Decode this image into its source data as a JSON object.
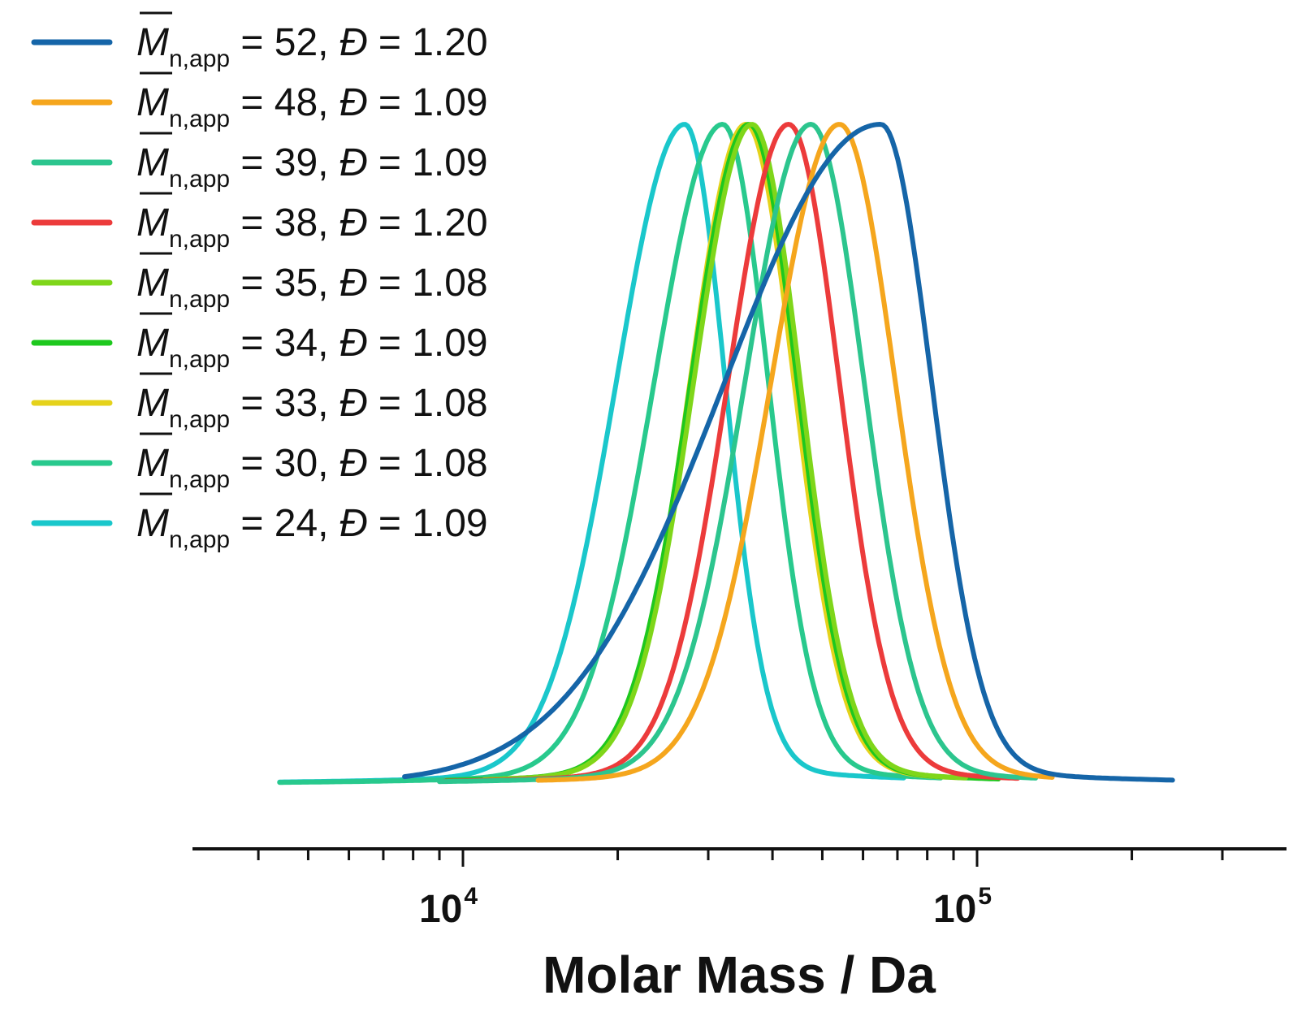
{
  "chart_data": {
    "type": "line",
    "xlabel": "Molar Mass / Da",
    "ylabel": "",
    "title": "",
    "xscale": "log",
    "xlim": [
      4000,
      400000
    ],
    "grid": false,
    "legend_position": "top-left",
    "x_ticks": [
      {
        "base": "10",
        "exp": "4"
      },
      {
        "base": "10",
        "exp": "5"
      }
    ],
    "series": [
      {
        "Mn": "52",
        "D": "1.20",
        "color": "#1565A8",
        "peak": 65000,
        "sigma_left": 0.62,
        "sigma_right": 0.2,
        "x_start": 7700,
        "x_end": 240000
      },
      {
        "Mn": "48",
        "D": "1.09",
        "color": "#F5A61D",
        "peak": 54000,
        "sigma_left": 0.27,
        "sigma_right": 0.22,
        "x_start": 14000,
        "x_end": 140000
      },
      {
        "Mn": "39",
        "D": "1.09",
        "color": "#2CC58E",
        "peak": 47500,
        "sigma_left": 0.26,
        "sigma_right": 0.21,
        "x_start": 9000,
        "x_end": 130000
      },
      {
        "Mn": "38",
        "D": "1.20",
        "color": "#EC3B3B",
        "peak": 43000,
        "sigma_left": 0.24,
        "sigma_right": 0.2,
        "x_start": 9200,
        "x_end": 120000
      },
      {
        "Mn": "35",
        "D": "1.08",
        "color": "#7FD61A",
        "peak": 36500,
        "sigma_left": 0.23,
        "sigma_right": 0.19,
        "x_start": 11000,
        "x_end": 95000
      },
      {
        "Mn": "34",
        "D": "1.09",
        "color": "#1EC81E",
        "peak": 36000,
        "sigma_left": 0.23,
        "sigma_right": 0.19,
        "x_start": 9300,
        "x_end": 110000
      },
      {
        "Mn": "33",
        "D": "1.08",
        "color": "#E5D21B",
        "peak": 35500,
        "sigma_left": 0.22,
        "sigma_right": 0.19,
        "x_start": 12000,
        "x_end": 95000
      },
      {
        "Mn": "30",
        "D": "1.08",
        "color": "#28C98D",
        "peak": 32000,
        "sigma_left": 0.27,
        "sigma_right": 0.18,
        "x_start": 4400,
        "x_end": 85000
      },
      {
        "Mn": "24",
        "D": "1.09",
        "color": "#1AC7CB",
        "peak": 27000,
        "sigma_left": 0.27,
        "sigma_right": 0.16,
        "x_start": 4400,
        "x_end": 72000
      }
    ]
  },
  "legend": {
    "symbol": "M",
    "subscript": "n,app",
    "eq": " = ",
    "d_symbol": "Đ",
    "sep": ", "
  }
}
